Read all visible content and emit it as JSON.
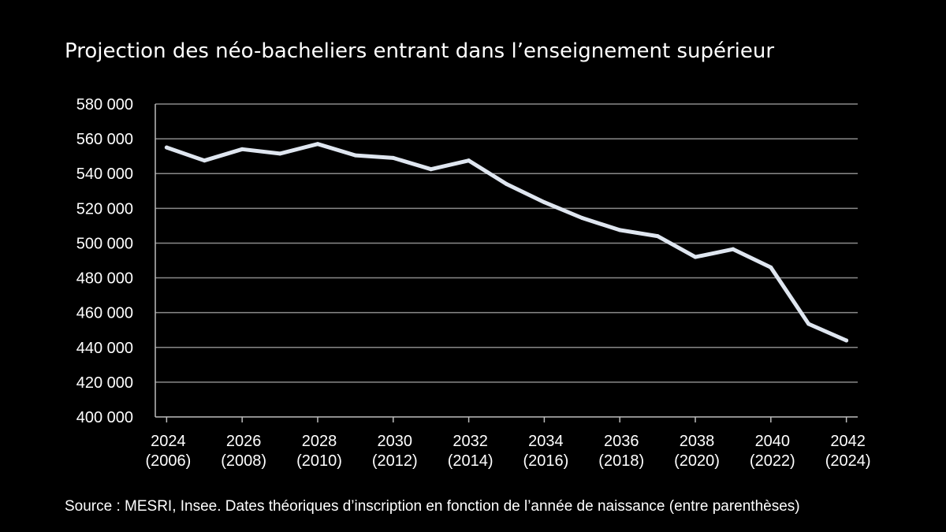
{
  "chart_data": {
    "type": "line",
    "title": "Projection des néo-bacheliers entrant dans l’enseignement supérieur",
    "x": [
      2024,
      2025,
      2026,
      2027,
      2028,
      2029,
      2030,
      2031,
      2032,
      2033,
      2034,
      2035,
      2036,
      2037,
      2038,
      2039,
      2040,
      2041,
      2042
    ],
    "series": [
      {
        "values": [
          555000,
          547500,
          554000,
          551500,
          557000,
          550500,
          549000,
          542500,
          547500,
          534000,
          523500,
          514500,
          507500,
          504000,
          492000,
          496500,
          486000,
          453500,
          444000
        ]
      }
    ],
    "ylim": [
      400000,
      580000
    ],
    "yticks": [
      400000,
      420000,
      440000,
      460000,
      480000,
      500000,
      520000,
      540000,
      560000,
      580000
    ],
    "ytick_labels": [
      "400 000",
      "420 000",
      "440 000",
      "460 000",
      "480 000",
      "500 000",
      "520 000",
      "540 000",
      "560 000",
      "580 000"
    ],
    "xticks": [
      2024,
      2026,
      2028,
      2030,
      2032,
      2034,
      2036,
      2038,
      2040,
      2042
    ],
    "xtick_labels": [
      [
        "2024",
        "(2006)"
      ],
      [
        "2026",
        "(2008)"
      ],
      [
        "2028",
        "(2010)"
      ],
      [
        "2030",
        "(2012)"
      ],
      [
        "2032",
        "(2014)"
      ],
      [
        "2034",
        "(2016)"
      ],
      [
        "2036",
        "(2018)"
      ],
      [
        "2038",
        "(2020)"
      ],
      [
        "2040",
        "(2022)"
      ],
      [
        "2042",
        "(2024)"
      ]
    ],
    "grid": "horizontal",
    "source": "Source : MESRI, Insee. Dates théoriques d’inscription en fonction de l’année de naissance (entre parenthèses)",
    "colors": {
      "background": "#000000",
      "line": "#dfe6f0",
      "grid": "#8a8a8a",
      "text": "#ffffff"
    }
  }
}
